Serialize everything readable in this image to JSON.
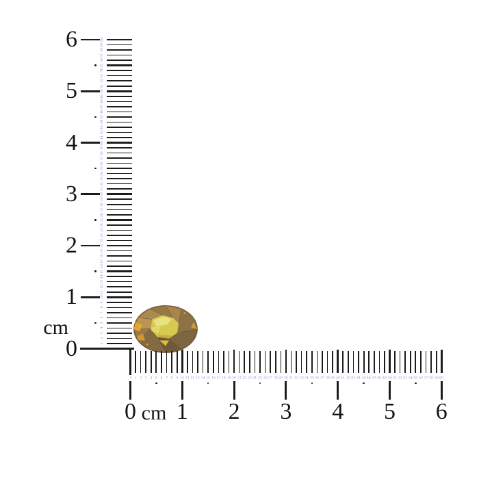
{
  "colors": {
    "background": "#ffffff",
    "tick": "#1c1c1c",
    "mm_label": "#8a8ed8",
    "cm_number": "#141414"
  },
  "vertical_ruler": {
    "unit_label": "cm",
    "cm_labels": [
      "0",
      "1",
      "2",
      "3",
      "4",
      "5",
      "6"
    ],
    "mm_labels": [
      0,
      1,
      2,
      3,
      4,
      5,
      6,
      7,
      8,
      9,
      10,
      11,
      12,
      13,
      14,
      15,
      16,
      17,
      18,
      19,
      20,
      21,
      22,
      23,
      24,
      25,
      26,
      27,
      28,
      29,
      30,
      31,
      32,
      33,
      34,
      35,
      36,
      37,
      38,
      39,
      40,
      41,
      42,
      43,
      44,
      45,
      46,
      47,
      48,
      49,
      50,
      51,
      52,
      53,
      54,
      55,
      56,
      57,
      58,
      59,
      60
    ],
    "half_cm_dot_positions_mm": [
      5,
      15,
      25,
      35,
      45,
      55
    ]
  },
  "horizontal_ruler": {
    "unit_label": "cm",
    "cm_labels": [
      "0",
      "1",
      "2",
      "3",
      "4",
      "5",
      "6"
    ],
    "mm_labels": [
      0,
      1,
      2,
      3,
      4,
      5,
      6,
      7,
      8,
      9,
      10,
      11,
      12,
      13,
      14,
      15,
      16,
      17,
      18,
      19,
      20,
      21,
      22,
      23,
      24,
      25,
      26,
      27,
      28,
      29,
      30,
      31,
      32,
      33,
      34,
      35,
      36,
      37,
      38,
      39,
      40,
      41,
      42,
      43,
      44,
      45,
      46,
      47,
      48,
      49,
      50,
      51,
      52,
      53,
      54,
      55,
      56,
      57,
      58,
      59,
      60
    ],
    "half_cm_dot_positions_mm": [
      5,
      15,
      25,
      35,
      45,
      55
    ]
  },
  "gemstone": {
    "shape": "oval faceted gem",
    "measured_width_cm": 1.2,
    "measured_height_cm": 0.9,
    "colors": {
      "rim_light": "#c9a35e",
      "rim_mid": "#9a7a48",
      "rim_dark": "#74593a",
      "table": "#d7c94f",
      "table_highlight": "#e9e282",
      "accent_gold": "#e2a62f"
    }
  }
}
